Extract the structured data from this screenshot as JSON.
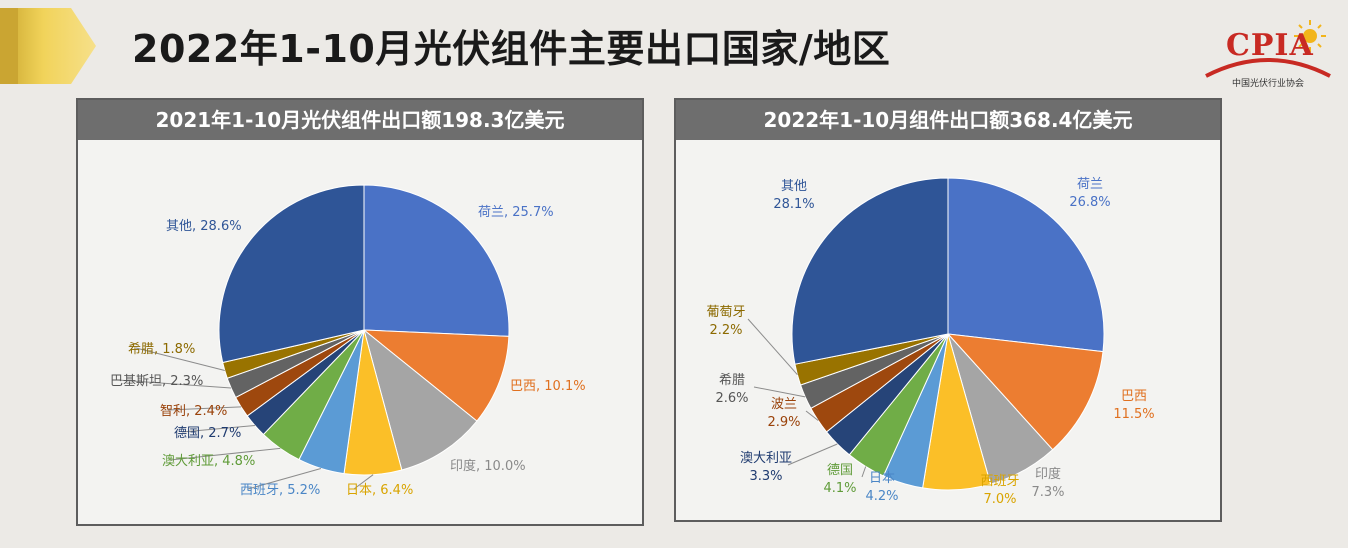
{
  "page": {
    "title": "2022年1-10月光伏组件主要出口国家/地区",
    "logo_text": "CPIA",
    "logo_sub": "中国光伏行业协会"
  },
  "chart_data": [
    {
      "type": "pie",
      "title": "2021年1-10月光伏组件出口额198.3亿美元",
      "label_format": "inline",
      "slices": [
        {
          "name": "荷兰",
          "value": 25.7,
          "label": "25.7%",
          "color": "#4a72c6",
          "text_color": "#4a72c6"
        },
        {
          "name": "巴西",
          "value": 10.1,
          "label": "10.1%",
          "color": "#ec7d31",
          "text_color": "#e0701f"
        },
        {
          "name": "印度",
          "value": 10.0,
          "label": "10.0%",
          "color": "#a5a5a5",
          "text_color": "#8a8a8a"
        },
        {
          "name": "日本",
          "value": 6.4,
          "label": "6.4%",
          "color": "#fbbf28",
          "text_color": "#d9a400"
        },
        {
          "name": "西班牙",
          "value": 5.2,
          "label": "5.2%",
          "color": "#5b9bd5",
          "text_color": "#4a86c6"
        },
        {
          "name": "澳大利亚",
          "value": 4.8,
          "label": "4.8%",
          "color": "#70ad47",
          "text_color": "#5f9b38"
        },
        {
          "name": "德国",
          "value": 2.7,
          "label": "2.7%",
          "color": "#264478",
          "text_color": "#1f3b70"
        },
        {
          "name": "智利",
          "value": 2.4,
          "label": "2.4%",
          "color": "#9e480e",
          "text_color": "#9a420a"
        },
        {
          "name": "巴基斯坦",
          "value": 2.3,
          "label": "2.3%",
          "color": "#636363",
          "text_color": "#555555"
        },
        {
          "name": "希腊",
          "value": 1.8,
          "label": "1.8%",
          "color": "#997300",
          "text_color": "#8c6a00"
        },
        {
          "name": "其他",
          "value": 28.6,
          "label": "28.6%",
          "color": "#2f5597",
          "text_color": "#2f5597"
        }
      ]
    },
    {
      "type": "pie",
      "title": "2022年1-10月组件出口额368.4亿美元",
      "label_format": "stacked",
      "slices": [
        {
          "name": "荷兰",
          "value": 26.8,
          "label": "26.8%",
          "color": "#4a72c6",
          "text_color": "#4a72c6"
        },
        {
          "name": "巴西",
          "value": 11.5,
          "label": "11.5%",
          "color": "#ec7d31",
          "text_color": "#e0701f"
        },
        {
          "name": "印度",
          "value": 7.3,
          "label": "7.3%",
          "color": "#a5a5a5",
          "text_color": "#8a8a8a"
        },
        {
          "name": "西班牙",
          "value": 7.0,
          "label": "7.0%",
          "color": "#fbbf28",
          "text_color": "#d9a400"
        },
        {
          "name": "日本",
          "value": 4.2,
          "label": "4.2%",
          "color": "#5b9bd5",
          "text_color": "#4a86c6"
        },
        {
          "name": "德国",
          "value": 4.1,
          "label": "4.1%",
          "color": "#70ad47",
          "text_color": "#5f9b38"
        },
        {
          "name": "澳大利亚",
          "value": 3.3,
          "label": "3.3%",
          "color": "#264478",
          "text_color": "#1f3b70"
        },
        {
          "name": "波兰",
          "value": 2.9,
          "label": "2.9%",
          "color": "#9e480e",
          "text_color": "#9a420a"
        },
        {
          "name": "希腊",
          "value": 2.6,
          "label": "2.6%",
          "color": "#636363",
          "text_color": "#555555"
        },
        {
          "name": "葡萄牙",
          "value": 2.2,
          "label": "2.2%",
          "color": "#997300",
          "text_color": "#8c6a00"
        },
        {
          "name": "其他",
          "value": 28.1,
          "label": "28.1%",
          "color": "#2f5597",
          "text_color": "#2f5597"
        }
      ]
    }
  ]
}
